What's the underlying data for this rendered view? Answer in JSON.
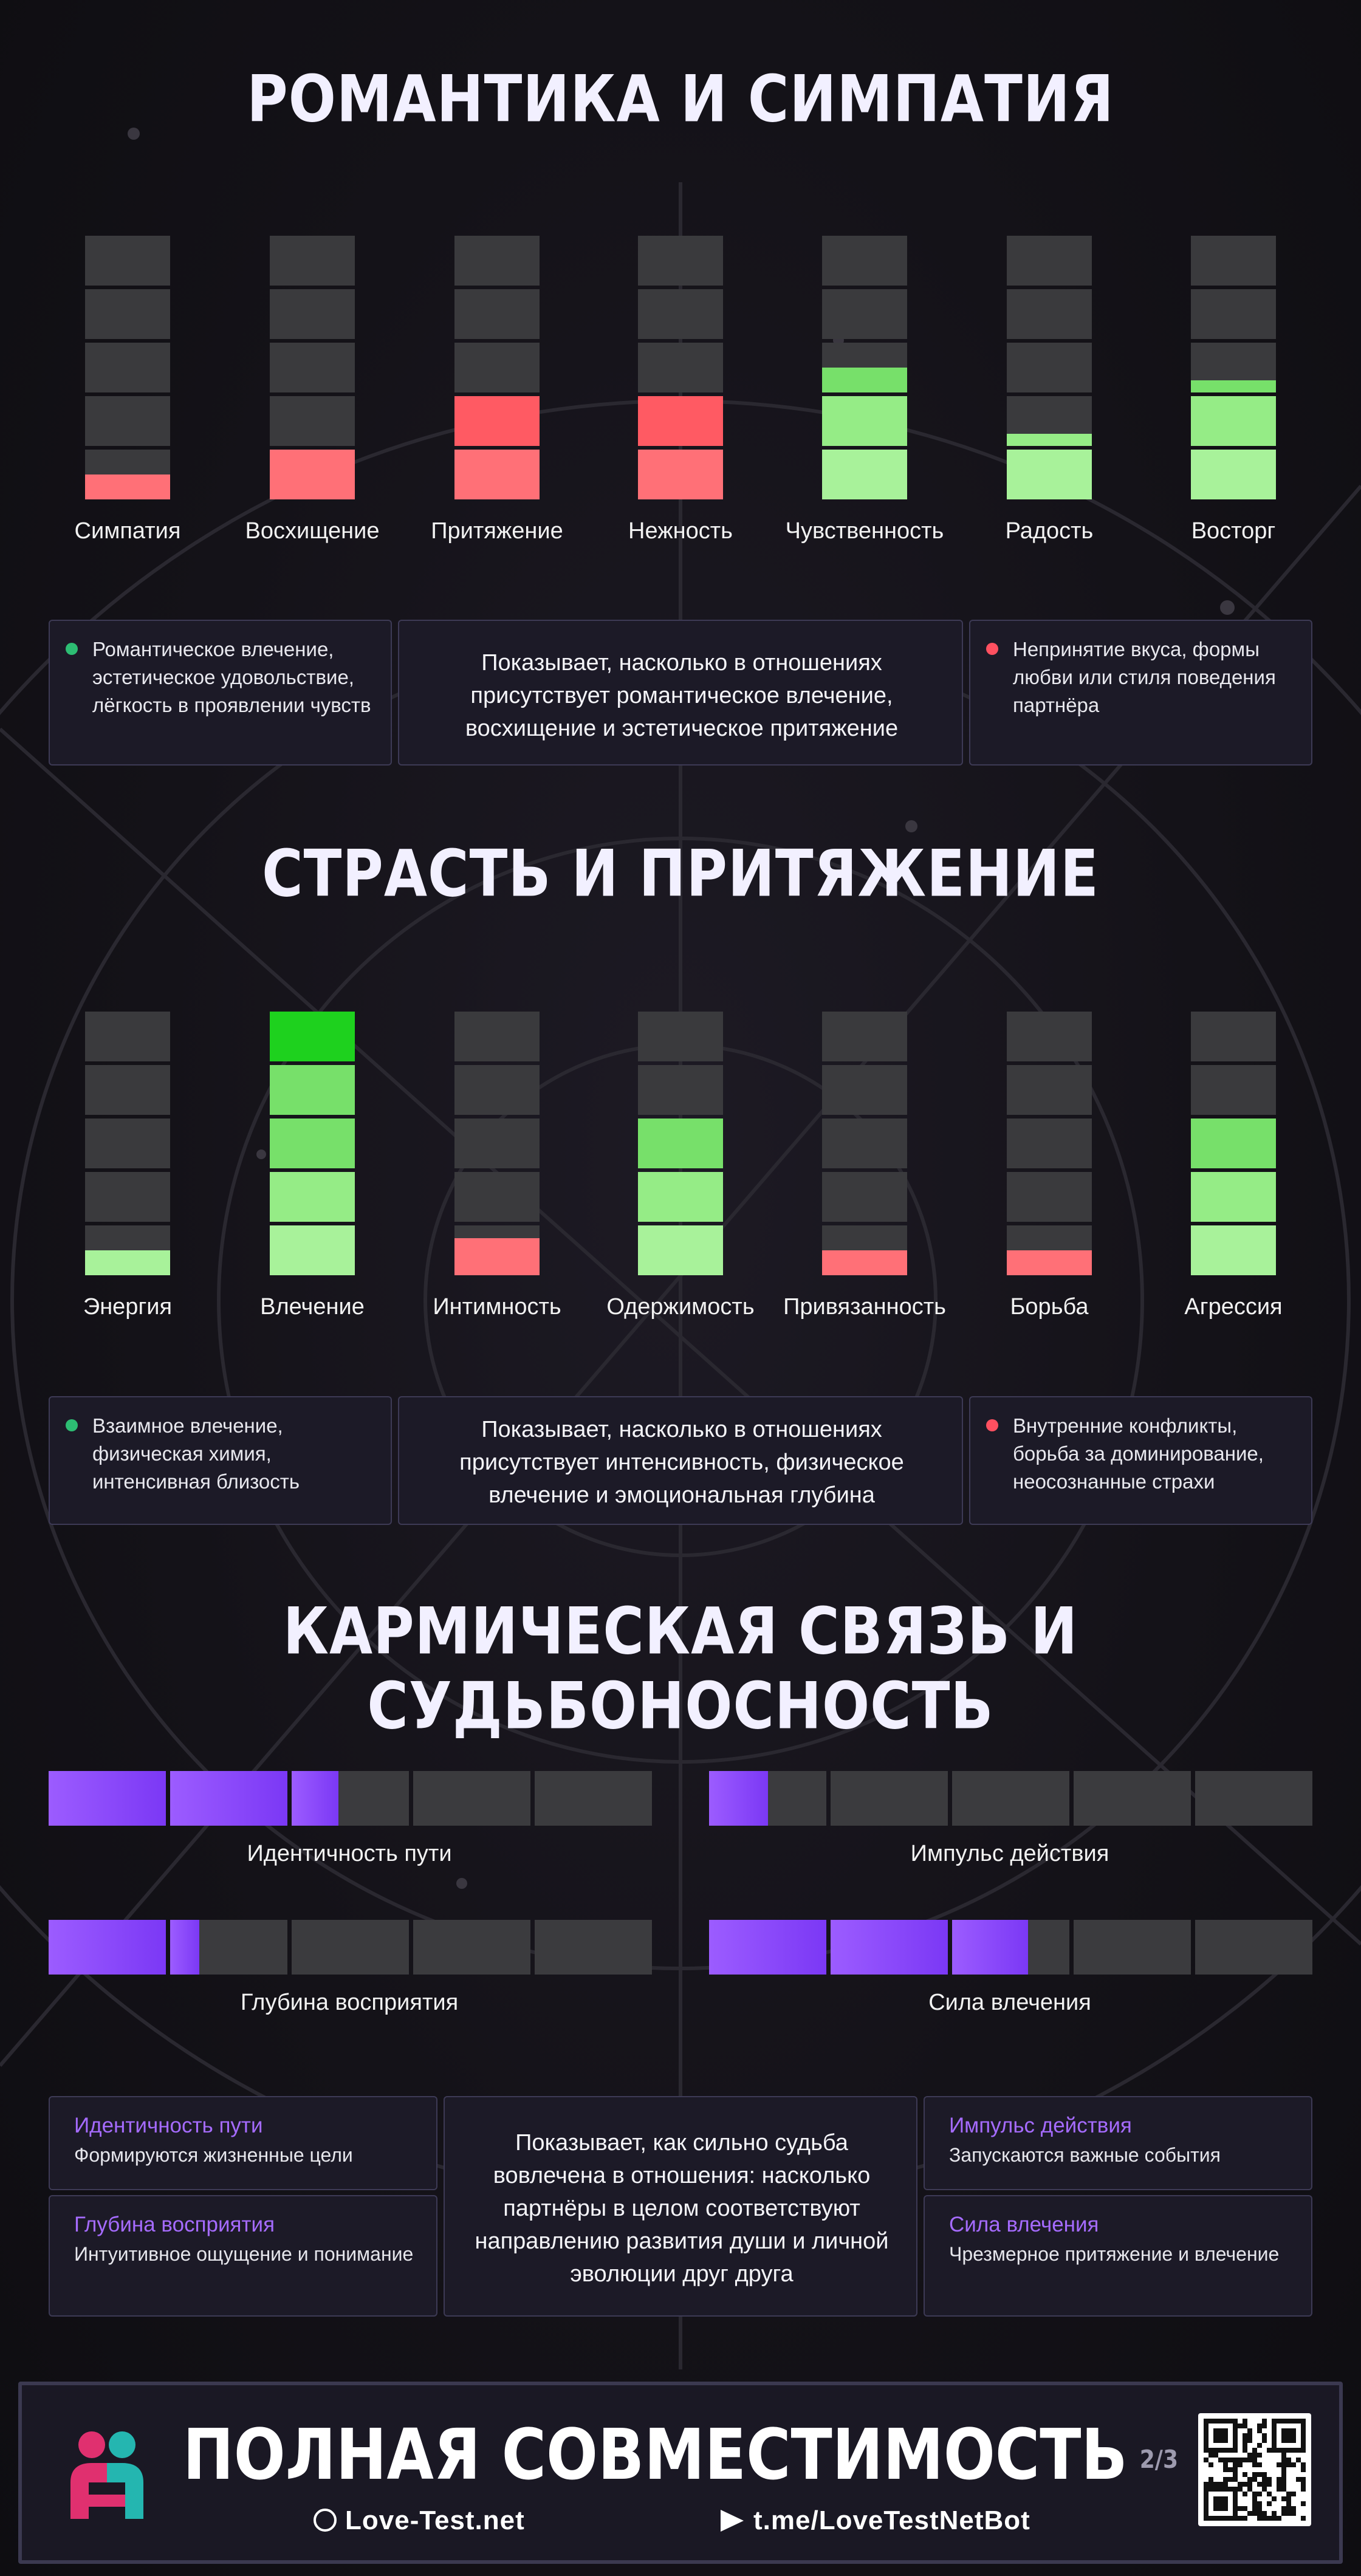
{
  "colors": {
    "green": "#77e06a",
    "green_light": "#a8f29a",
    "green_bright": "#1ed11e",
    "red": "#ff5a63",
    "red_light": "#ff7077",
    "purple": "#7b38f5",
    "purple_light": "#9c5cff",
    "empty": "#3a3a3d",
    "card_bg": "#1c1a27",
    "card_border": "#3d3a55",
    "accent_purple_text": "#a56bff"
  },
  "romance": {
    "title": "РОМАНТИКА И СИМПАТИЯ",
    "bars": [
      {
        "label": "Симпатия",
        "level": 0.1,
        "color": "red"
      },
      {
        "label": "Восхищение",
        "level": 0.2,
        "color": "red"
      },
      {
        "label": "Притяжение",
        "level": 0.4,
        "color": "red"
      },
      {
        "label": "Нежность",
        "level": 0.4,
        "color": "red"
      },
      {
        "label": "Чувственность",
        "level": 0.5,
        "color": "green"
      },
      {
        "label": "Радость",
        "level": 0.25,
        "color": "green"
      },
      {
        "label": "Восторг",
        "level": 0.45,
        "color": "green"
      }
    ],
    "positive": "Романтическое влечение, эстетическое удовольствие, лёгкость в проявлении чувств",
    "center": "Показывает, насколько в отношениях присутствует романтическое влечение, восхищение и эстетическое притяжение",
    "negative": "Непринятие вкуса, формы любви или стиля поведения партнёра"
  },
  "passion": {
    "title": "СТРАСТЬ И ПРИТЯЖЕНИЕ",
    "bars": [
      {
        "label": "Энергия",
        "level": 0.1,
        "color": "green"
      },
      {
        "label": "Влечение",
        "level": 1.0,
        "color": "green"
      },
      {
        "label": "Интимность",
        "level": 0.15,
        "color": "red"
      },
      {
        "label": "Одержимость",
        "level": 0.6,
        "color": "green"
      },
      {
        "label": "Привязанность",
        "level": 0.1,
        "color": "red"
      },
      {
        "label": "Борьба",
        "level": 0.1,
        "color": "red"
      },
      {
        "label": "Агрессия",
        "level": 0.6,
        "color": "green"
      }
    ],
    "positive": "Взаимное влечение, физическая химия, интенсивная близость",
    "center": "Показывает, насколько в отношениях присутствует интенсивность, физическое влечение и эмоциональная глубина",
    "negative": "Внутренние конфликты, борьба за доминирование, неосознанные страхи"
  },
  "karmic": {
    "title": "КАРМИЧЕСКАЯ СВЯЗЬ И СУДЬБОНОСНОСТЬ",
    "bars": [
      {
        "label": "Идентичность пути",
        "level": 0.48
      },
      {
        "label": "Импульс действия",
        "level": 0.1
      },
      {
        "label": "Глубина восприятия",
        "level": 0.25
      },
      {
        "label": "Сила влечения",
        "level": 0.53
      }
    ],
    "cards_left": [
      {
        "title": "Идентичность пути",
        "desc": "Формируются жизненные цели"
      },
      {
        "title": "Глубина восприятия",
        "desc": "Интуитивное ощущение и понимание"
      }
    ],
    "cards_right": [
      {
        "title": "Импульс действия",
        "desc": "Запускаются важные события"
      },
      {
        "title": "Сила влечения",
        "desc": "Чрезмерное притяжение и влечение"
      }
    ],
    "center": "Показывает, как сильно судьба вовлечена в отношения: насколько партнёры в целом соответствуют направлению развития души и личной эволюции друг друга"
  },
  "footer": {
    "title": "ПОЛНАЯ СОВМЕСТИМОСТЬ",
    "page": "2/3",
    "site": "Love-Test.net",
    "bot": "t.me/LoveTestNetBot"
  }
}
